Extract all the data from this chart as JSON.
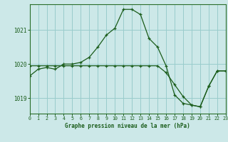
{
  "background_color": "#cce8e8",
  "grid_color": "#99cccc",
  "line_color": "#1a5c1a",
  "x_values": [
    0,
    1,
    2,
    3,
    4,
    5,
    6,
    7,
    8,
    9,
    10,
    11,
    12,
    13,
    14,
    15,
    16,
    17,
    18,
    19,
    20,
    21,
    22,
    23
  ],
  "series1": [
    1019.65,
    1019.85,
    1019.9,
    1019.85,
    1020.0,
    1020.0,
    1020.05,
    1020.2,
    1020.5,
    1020.85,
    1021.05,
    1021.6,
    1021.6,
    1021.45,
    1020.75,
    1020.5,
    1019.95,
    1019.1,
    1018.85,
    1018.8,
    1018.75,
    1019.35,
    1019.8,
    1019.8
  ],
  "series2": [
    1019.95,
    1019.95,
    1019.95,
    1019.95,
    1019.95,
    1019.95,
    1019.95,
    1019.95,
    1019.95,
    1019.95,
    1019.95,
    1019.95,
    1019.95,
    1019.95,
    1019.95,
    1019.95,
    1019.75,
    1019.4,
    1019.05,
    1018.8,
    1018.75,
    1019.35,
    1019.8,
    1019.8
  ],
  "ylim": [
    1018.55,
    1021.75
  ],
  "yticks": [
    1019,
    1020,
    1021
  ],
  "xlim": [
    0,
    23
  ],
  "xlabel": "Graphe pression niveau de la mer (hPa)"
}
